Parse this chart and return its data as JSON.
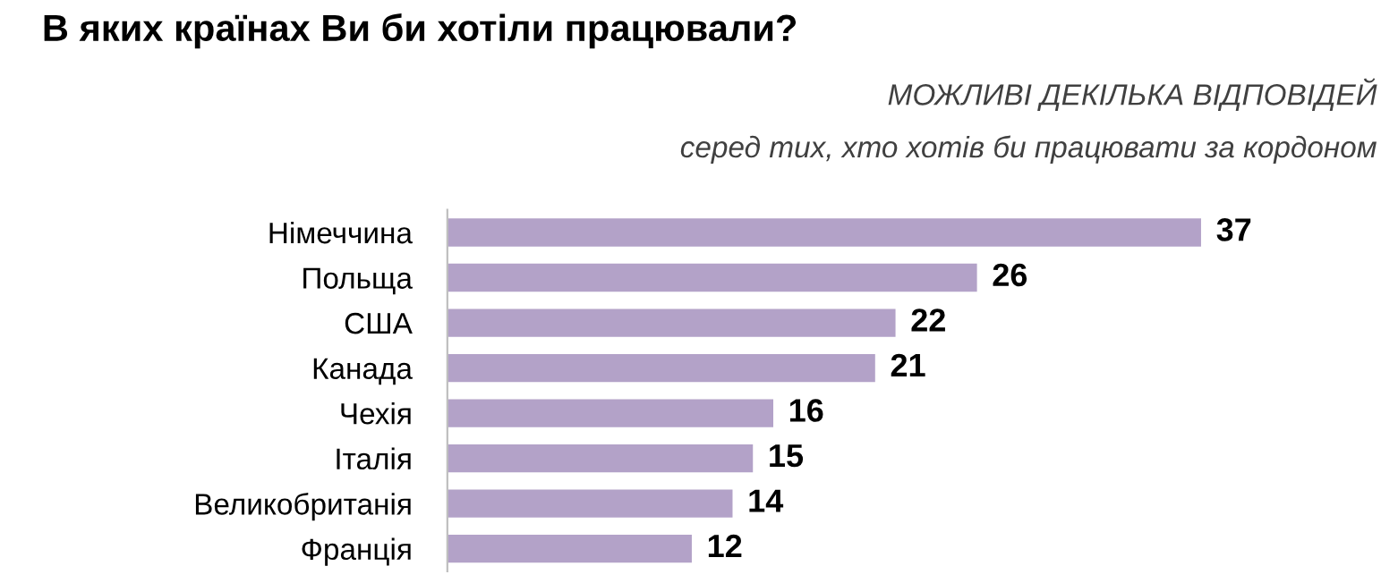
{
  "chart_data": {
    "type": "bar",
    "orientation": "horizontal",
    "title": "В яких країнах Ви би хотіли працювали?",
    "annotations": [
      "МОЖЛИВІ ДЕКІЛЬКА ВІДПОВІДЕЙ",
      "серед тих, хто хотів би працювати за кордоном"
    ],
    "categories": [
      "Німеччина",
      "Польща",
      "США",
      "Канада",
      "Чехія",
      "Італія",
      "Великобританія",
      "Франція"
    ],
    "values": [
      37,
      26,
      22,
      21,
      16,
      15,
      14,
      12
    ],
    "color": "#b3a2c8",
    "data_labels": true,
    "grid": false,
    "legend": false
  }
}
